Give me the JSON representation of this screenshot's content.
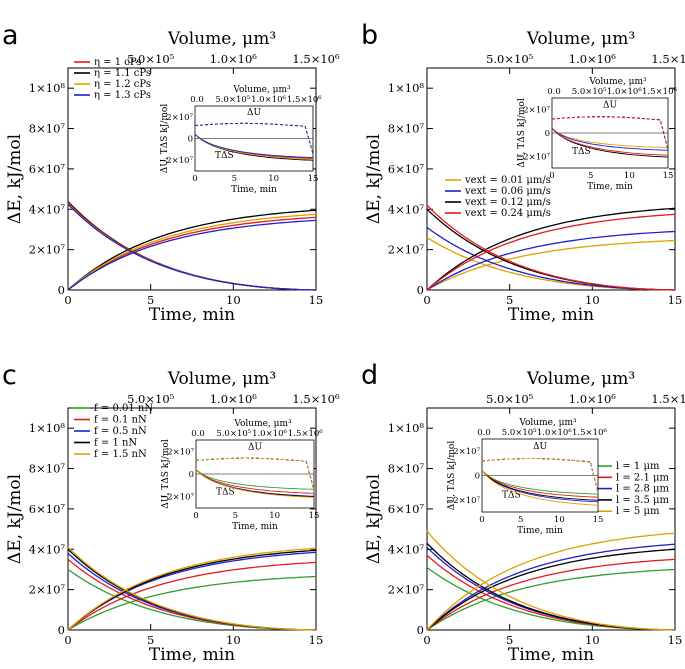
{
  "figure": {
    "volume_scale_um3_per_min": 100000,
    "x_axis": {
      "label": "Time, min",
      "ticks": [
        0,
        5,
        10,
        15
      ],
      "xlim": [
        0,
        15
      ]
    },
    "top_axis": {
      "label": "Volume, μm³",
      "tick_labels": [
        "5.0×10⁵",
        "1.0×10⁶",
        "1.5×10⁶"
      ],
      "tick_values": [
        500000,
        1000000,
        1500000
      ]
    },
    "y_axis": {
      "label": "ΔE, kJ/mol",
      "tick_labels": [
        "0",
        "2×10⁷",
        "4×10⁷",
        "6×10⁷",
        "8×10⁷",
        "1×10⁸"
      ],
      "ylim": [
        0,
        110000000
      ]
    },
    "inset": {
      "top_label": "Volume, μm³",
      "top_ticks": [
        "0.0",
        "5.0×10⁵",
        "1.0×10⁶",
        "1.5×10⁶"
      ],
      "x_label": "Time, min",
      "x_ticks": [
        "0",
        "5",
        "10",
        "15"
      ],
      "y_label": "ΔU, TΔS kJ/mol",
      "y_ticks": [
        "2×10⁷",
        "0",
        "−2×10⁷"
      ],
      "annot_u": "ΔU",
      "annot_ts": "TΔS"
    }
  },
  "panels": [
    {
      "letter": "a",
      "legend_position": "top-left",
      "legend_items": [
        "η = 1 cPs",
        "η = 1.1 cPs",
        "η = 1.2 cPs",
        "η = 1.3 cPs"
      ]
    },
    {
      "letter": "b",
      "legend_position": "middle-left",
      "legend_items": [
        "vext = 0.01 μm/s",
        "vext = 0.06 μm/s",
        "vext = 0.12 μm/s",
        "vext = 0.24 μm/s"
      ]
    },
    {
      "letter": "c",
      "legend_position": "top-left",
      "legend_items": [
        "f = 0.01 nN",
        "f = 0.1 nN",
        "f = 0.5 nN",
        "f = 1 nN",
        "f = 1.5 nN"
      ]
    },
    {
      "letter": "d",
      "legend_position": "top-right",
      "legend_items": [
        "l = 1 μm",
        "l = 2.1 μm",
        "l = 2.8 μm",
        "l = 3.5 μm",
        "l = 5 μm"
      ]
    }
  ],
  "chart_data": [
    {
      "type": "line",
      "panel": "a",
      "xlabel": "Time, min",
      "ylabel": "ΔE, kJ/mol",
      "xlim": [
        0,
        15
      ],
      "ylim": [
        0,
        110000000
      ],
      "series": [
        {
          "name": "η = 1 cPs",
          "color": "#e41a1c",
          "decreasing": {
            "start": 44000000,
            "end": 0
          },
          "increasing": {
            "end": 36000000
          }
        },
        {
          "name": "η = 1.1 cPs",
          "color": "#000000",
          "decreasing": {
            "start": 43500000,
            "end": 0
          },
          "increasing": {
            "end": 39500000
          }
        },
        {
          "name": "η = 1.2 cPs",
          "color": "#e0a000",
          "decreasing": {
            "start": 43000000,
            "end": 0
          },
          "increasing": {
            "end": 37500000
          }
        },
        {
          "name": "η = 1.3 cPs",
          "color": "#1f1fd0",
          "decreasing": {
            "start": 42500000,
            "end": 0
          },
          "increasing": {
            "end": 34500000
          }
        }
      ]
    },
    {
      "type": "line",
      "panel": "b",
      "xlabel": "Time, min",
      "ylabel": "ΔE, kJ/mol",
      "xlim": [
        0,
        15
      ],
      "ylim": [
        0,
        110000000
      ],
      "series": [
        {
          "name": "vext = 0.01 μm/s",
          "color": "#e0a000",
          "decreasing": {
            "start": 26000000,
            "end": 0
          },
          "increasing": {
            "end": 24500000
          }
        },
        {
          "name": "vext = 0.06 μm/s",
          "color": "#1f1fd0",
          "decreasing": {
            "start": 31000000,
            "end": 0
          },
          "increasing": {
            "end": 29000000
          }
        },
        {
          "name": "vext = 0.12 μm/s",
          "color": "#000000",
          "decreasing": {
            "start": 40000000,
            "end": 0
          },
          "increasing": {
            "end": 40500000
          }
        },
        {
          "name": "vext = 0.24 μm/s",
          "color": "#e41a1c",
          "decreasing": {
            "start": 42000000,
            "end": 0
          },
          "increasing": {
            "end": 37500000
          }
        }
      ]
    },
    {
      "type": "line",
      "panel": "c",
      "xlabel": "Time, min",
      "ylabel": "ΔE, kJ/mol",
      "xlim": [
        0,
        15
      ],
      "ylim": [
        0,
        110000000
      ],
      "series": [
        {
          "name": "f = 0.01 nN",
          "color": "#2ca02c",
          "decreasing": {
            "start": 30000000,
            "end": 0
          },
          "increasing": {
            "end": 26500000
          }
        },
        {
          "name": "f = 0.1 nN",
          "color": "#e41a1c",
          "decreasing": {
            "start": 35000000,
            "end": 0
          },
          "increasing": {
            "end": 33500000
          }
        },
        {
          "name": "f = 0.5 nN",
          "color": "#1f1fd0",
          "decreasing": {
            "start": 38000000,
            "end": 0
          },
          "increasing": {
            "end": 38500000
          }
        },
        {
          "name": "f = 1 nN",
          "color": "#000000",
          "decreasing": {
            "start": 40000000,
            "end": 0
          },
          "increasing": {
            "end": 39500000
          }
        },
        {
          "name": "f = 1.5 nN",
          "color": "#e0a000",
          "decreasing": {
            "start": 41000000,
            "end": 0
          },
          "increasing": {
            "end": 40500000
          }
        }
      ]
    },
    {
      "type": "line",
      "panel": "d",
      "xlabel": "Time, min",
      "ylabel": "ΔE, kJ/mol",
      "xlim": [
        0,
        15
      ],
      "ylim": [
        0,
        110000000
      ],
      "series": [
        {
          "name": "l = 1 μm",
          "color": "#2ca02c",
          "decreasing": {
            "start": 31000000,
            "end": 0
          },
          "increasing": {
            "end": 30000000
          }
        },
        {
          "name": "l = 2.1 μm",
          "color": "#e41a1c",
          "decreasing": {
            "start": 37000000,
            "end": 0
          },
          "increasing": {
            "end": 35000000
          }
        },
        {
          "name": "l = 2.8 μm",
          "color": "#1f1fd0",
          "decreasing": {
            "start": 41000000,
            "end": 0
          },
          "increasing": {
            "end": 42500000
          }
        },
        {
          "name": "l = 3.5 μm",
          "color": "#000000",
          "decreasing": {
            "start": 43000000,
            "end": 0
          },
          "increasing": {
            "end": 40000000
          }
        },
        {
          "name": "l = 5 μm",
          "color": "#e0a000",
          "decreasing": {
            "start": 49000000,
            "end": 0
          },
          "increasing": {
            "end": 48000000
          }
        }
      ]
    }
  ]
}
